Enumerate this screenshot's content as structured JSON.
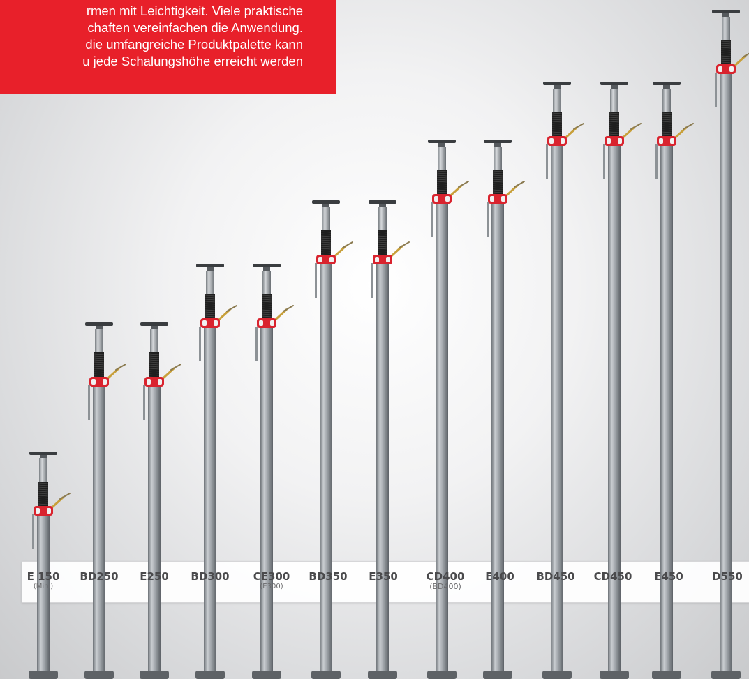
{
  "banner": {
    "lines": [
      "rmen mit Leichtigkeit. Viele praktische",
      "chaften vereinfachen die Anwendung.",
      "die umfangreiche Produktpalette kann",
      "u jede Schalungshöhe erreicht werden"
    ]
  },
  "props": [
    {
      "label": "E 150",
      "sub": "(Mini)"
    },
    {
      "label": "BD250",
      "sub": ""
    },
    {
      "label": "E250",
      "sub": ""
    },
    {
      "label": "BD300",
      "sub": ""
    },
    {
      "label": "CE300",
      "sub": "(E300)"
    },
    {
      "label": "BD350",
      "sub": ""
    },
    {
      "label": "E350",
      "sub": ""
    },
    {
      "label": "CD400",
      "sub": "(BD400)"
    },
    {
      "label": "E400",
      "sub": ""
    },
    {
      "label": "BD450",
      "sub": ""
    },
    {
      "label": "CD450",
      "sub": ""
    },
    {
      "label": "E450",
      "sub": ""
    },
    {
      "label": "D550",
      "sub": ""
    }
  ],
  "colors": {
    "banner_red": "#e8202a",
    "steel": "#9ea3a8",
    "clamp_red": "#d9232e",
    "thread": "#1f1f1f",
    "pin": "#c8a03a"
  }
}
